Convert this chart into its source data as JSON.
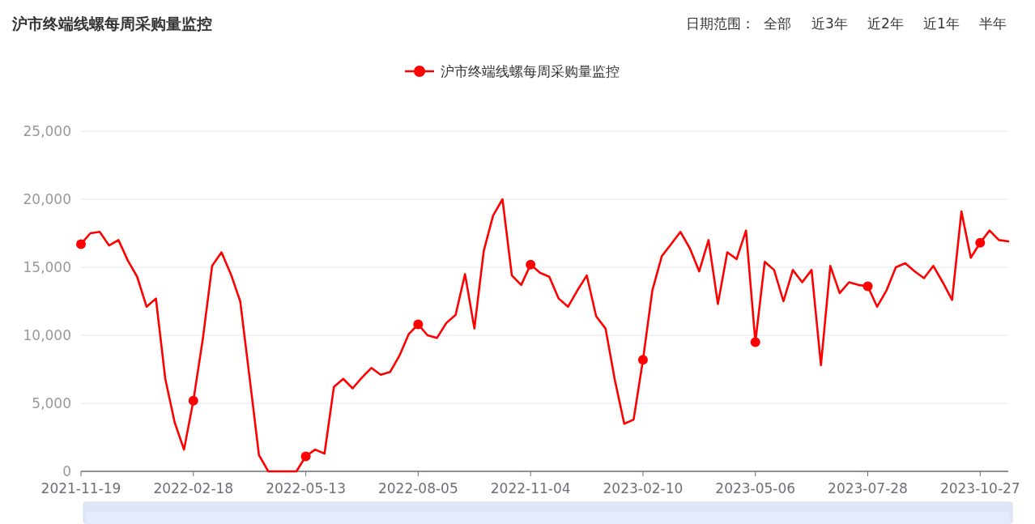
{
  "chart_data": {
    "type": "line",
    "title": "沪市终端线螺每周采购量监控",
    "annotations": [
      "日期范围：",
      "全部",
      "近3年",
      "近2年",
      "近1年",
      "半年"
    ],
    "categories": [
      "2021-11-19",
      null,
      null,
      null,
      null,
      null,
      null,
      null,
      null,
      null,
      null,
      null,
      "2022-02-18",
      null,
      null,
      null,
      null,
      null,
      null,
      null,
      null,
      null,
      null,
      null,
      "2022-05-13",
      null,
      null,
      null,
      null,
      null,
      null,
      null,
      null,
      null,
      null,
      null,
      "2022-08-05",
      null,
      null,
      null,
      null,
      null,
      null,
      null,
      null,
      null,
      null,
      null,
      "2022-11-04",
      null,
      null,
      null,
      null,
      null,
      null,
      null,
      null,
      null,
      null,
      null,
      "2023-02-10",
      null,
      null,
      null,
      null,
      null,
      null,
      null,
      null,
      null,
      null,
      null,
      "2023-05-06",
      null,
      null,
      null,
      null,
      null,
      null,
      null,
      null,
      null,
      null,
      null,
      "2023-07-28",
      null,
      null,
      null,
      null,
      null,
      null,
      null,
      null,
      null,
      null,
      null,
      "2023-10-27",
      null,
      null,
      null
    ],
    "series": [
      {
        "name": "沪市终端线螺每周采购量监控",
        "color": "#ff0000",
        "values": [
          16700,
          17500,
          17600,
          16600,
          17000,
          15500,
          14300,
          12100,
          12700,
          6800,
          3600,
          1600,
          5200,
          9700,
          15100,
          16100,
          14500,
          12500,
          6900,
          1200,
          0,
          0,
          0,
          0,
          1100,
          1600,
          1300,
          6200,
          6800,
          6100,
          6900,
          7600,
          7100,
          7300,
          8500,
          10100,
          10800,
          10000,
          9800,
          10900,
          11500,
          14500,
          10500,
          16200,
          18800,
          20000,
          14400,
          13700,
          15200,
          14600,
          14300,
          12700,
          12100,
          13300,
          14400,
          11400,
          10500,
          6700,
          3500,
          3800,
          8200,
          13300,
          15800,
          16700,
          17600,
          16400,
          14700,
          17000,
          12300,
          16100,
          15600,
          17700,
          9500,
          15400,
          14800,
          12500,
          14800,
          13900,
          14800,
          7800,
          15100,
          13100,
          13900,
          13700,
          13600,
          12100,
          13300,
          15000,
          15300,
          14700,
          14200,
          15100,
          13900,
          12600,
          19100,
          15700,
          16800,
          17700,
          17000,
          16900
        ]
      },
      {
        "type": "scatter",
        "color": "#ff0000",
        "values": [
          16700,
          null,
          null,
          null,
          null,
          null,
          null,
          null,
          null,
          null,
          null,
          null,
          5200,
          null,
          null,
          null,
          null,
          null,
          null,
          null,
          null,
          null,
          null,
          null,
          1100,
          null,
          null,
          null,
          null,
          null,
          null,
          null,
          null,
          null,
          null,
          null,
          10800,
          null,
          null,
          null,
          null,
          null,
          null,
          null,
          null,
          null,
          null,
          null,
          15200,
          null,
          null,
          null,
          null,
          null,
          null,
          null,
          null,
          null,
          null,
          null,
          8200,
          null,
          null,
          null,
          null,
          null,
          null,
          null,
          null,
          null,
          null,
          null,
          9500,
          null,
          null,
          null,
          null,
          null,
          null,
          null,
          null,
          null,
          null,
          null,
          13600,
          null,
          null,
          null,
          null,
          null,
          null,
          null,
          null,
          null,
          null,
          null,
          16800,
          null,
          null,
          null
        ]
      }
    ],
    "ylim": [
      0,
      25000
    ],
    "yticks": [
      {
        "value": 0,
        "label": "0"
      },
      {
        "value": 5000,
        "label": "5,000"
      },
      {
        "value": 10000,
        "label": "10,000"
      },
      {
        "value": 15000,
        "label": "15,000"
      },
      {
        "value": 20000,
        "label": "20,000"
      },
      {
        "value": 25000,
        "label": "25,000"
      }
    ],
    "grid": "y",
    "legend": "top",
    "line_style": "solid"
  }
}
